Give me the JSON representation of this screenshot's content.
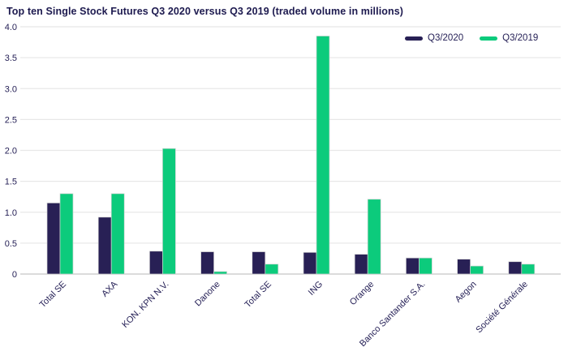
{
  "title": "Top ten Single Stock Futures Q3 2020 versus Q3 2019 (traded volume in millions)",
  "legend": {
    "items": [
      {
        "label": "Q3/2020",
        "color": "#282055"
      },
      {
        "label": "Q3/2019",
        "color": "#0ccb7c"
      }
    ]
  },
  "colors": {
    "title_text": "#1d1a4f",
    "axis_text": "#262157",
    "gridline": "#e8e8e8",
    "baseline": "#cfcfcf",
    "background": "#ffffff",
    "bar_navy": "#282055",
    "bar_green": "#0ccb7c"
  },
  "chart_data": {
    "type": "bar",
    "title": "Top ten Single Stock Futures Q3 2020 versus Q3 2019 (traded volume in millions)",
    "categories": [
      "Total SE",
      "AXA",
      "KON. KPN N.V.",
      "Danone",
      "Total SE",
      "ING",
      "Orange",
      "Banco Santander S.A.",
      "Aegon",
      "Société Générale"
    ],
    "series": [
      {
        "name": "Q3/2020",
        "color": "#282055",
        "values": [
          1.15,
          0.92,
          0.37,
          0.36,
          0.36,
          0.35,
          0.32,
          0.26,
          0.24,
          0.2
        ]
      },
      {
        "name": "Q3/2019",
        "color": "#0ccb7c",
        "values": [
          1.3,
          1.3,
          2.03,
          0.04,
          0.16,
          3.85,
          1.21,
          0.26,
          0.13,
          0.16
        ]
      }
    ],
    "xlabel": "",
    "ylabel": "",
    "ylim": [
      0,
      4.0
    ],
    "yticks": [
      0,
      0.5,
      1.0,
      1.5,
      2.0,
      2.5,
      3.0,
      3.5,
      4.0
    ],
    "grid": true,
    "legend_position": "top-right",
    "x_tick_rotation_deg": 45
  }
}
